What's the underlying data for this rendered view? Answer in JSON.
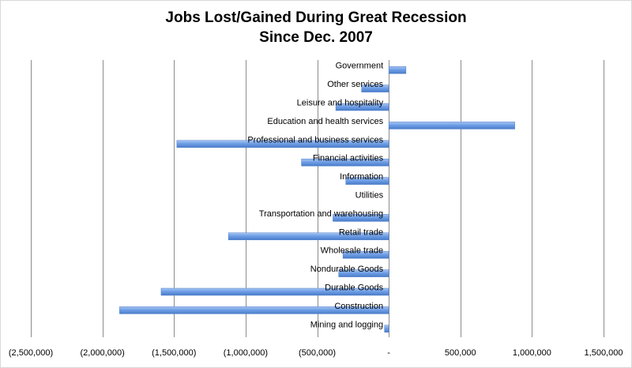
{
  "chart_data": {
    "type": "bar",
    "orientation": "horizontal",
    "title_line1": "Jobs Lost/Gained During Great Recession",
    "title_line2": "Since Dec. 2007",
    "categories": [
      "Mining and logging",
      "Construction",
      "Durable Goods",
      "Nondurable Goods",
      "Wholesale trade",
      "Retail trade",
      "Transportation and warehousing",
      "Utilities",
      "Information",
      "Financial activities",
      "Professional and business services",
      "Education and health services",
      "Leisure and hospitality",
      "Other services",
      "Government"
    ],
    "values": [
      -30000,
      -1880000,
      -1590000,
      -350000,
      -320000,
      -1120000,
      -390000,
      0,
      -300000,
      -610000,
      -1480000,
      880000,
      -370000,
      -190000,
      120000
    ],
    "xlim": [
      -2500000,
      1500000
    ],
    "xticks": [
      -2500000,
      -2000000,
      -1500000,
      -1000000,
      -500000,
      0,
      500000,
      1000000,
      1500000
    ],
    "xtick_labels": [
      "(2,500,000)",
      "(2,000,000)",
      "(1,500,000)",
      "(1,000,000)",
      "(500,000)",
      "-",
      "500,000",
      "1,000,000",
      "1,500,000"
    ],
    "grid": "vertical",
    "legend": "none",
    "bar_color": "#5b8fdb"
  }
}
